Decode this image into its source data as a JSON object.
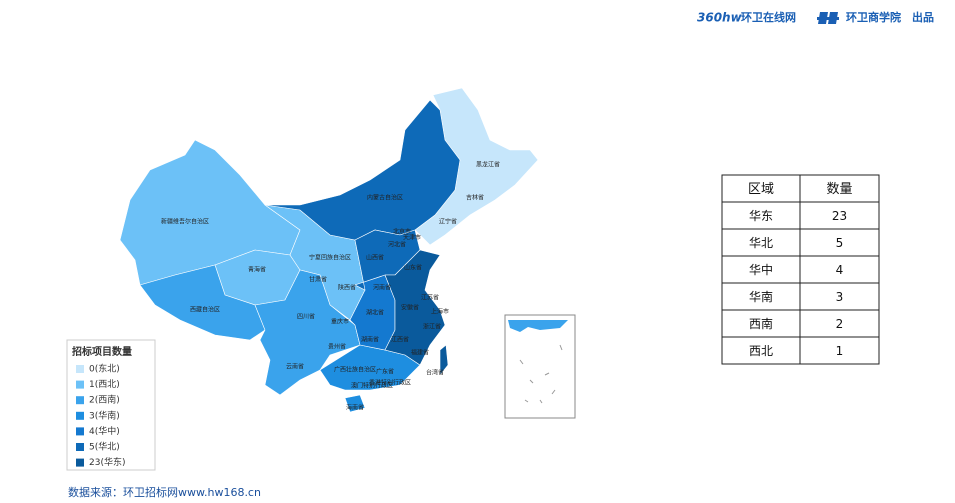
{
  "header": {
    "logo_mark": "360hw",
    "site": "环卫在线网",
    "academy": "环卫商学院",
    "credit": "出品"
  },
  "map": {
    "legend": {
      "title": "招标项目数量",
      "items": [
        {
          "label": "0(东北)",
          "color": "#c6e6fb",
          "provinces": [
            "黑龙江省",
            "吉林省",
            "辽宁省"
          ]
        },
        {
          "label": "1(西北)",
          "color": "#6cc1f7",
          "provinces": [
            "新疆维吾尔自治区",
            "青海省",
            "甘肃省",
            "宁夏回族自治区",
            "陕西省"
          ]
        },
        {
          "label": "2(西南)",
          "color": "#3aa3ec",
          "provinces": [
            "西藏自治区",
            "四川省",
            "重庆市",
            "贵州省",
            "云南省"
          ]
        },
        {
          "label": "3(华南)",
          "color": "#1e8ee0",
          "provinces": [
            "广西壮族自治区",
            "广东省",
            "香港特别行政区",
            "澳门特别行政区",
            "海南省"
          ]
        },
        {
          "label": "4(华中)",
          "color": "#1479d0",
          "provinces": [
            "河南省",
            "湖北省",
            "湖南省"
          ]
        },
        {
          "label": "5(华北)",
          "color": "#0e6ab8",
          "provinces": [
            "内蒙古自治区",
            "北京市",
            "天津市",
            "河北省",
            "山西省"
          ]
        },
        {
          "label": "23(华东)",
          "color": "#0a5a9c",
          "provinces": [
            "山东省",
            "江苏省",
            "安徽省",
            "上海市",
            "浙江省",
            "江西省",
            "福建省",
            "台湾省"
          ]
        }
      ]
    }
  },
  "table": {
    "header": [
      "区域",
      "数量"
    ],
    "rows": [
      [
        "华东",
        "23"
      ],
      [
        "华北",
        "5"
      ],
      [
        "华中",
        "4"
      ],
      [
        "华南",
        "3"
      ],
      [
        "西南",
        "2"
      ],
      [
        "西北",
        "1"
      ]
    ]
  },
  "footer": {
    "source": "数据来源：环卫招标网www.hw168.cn"
  }
}
